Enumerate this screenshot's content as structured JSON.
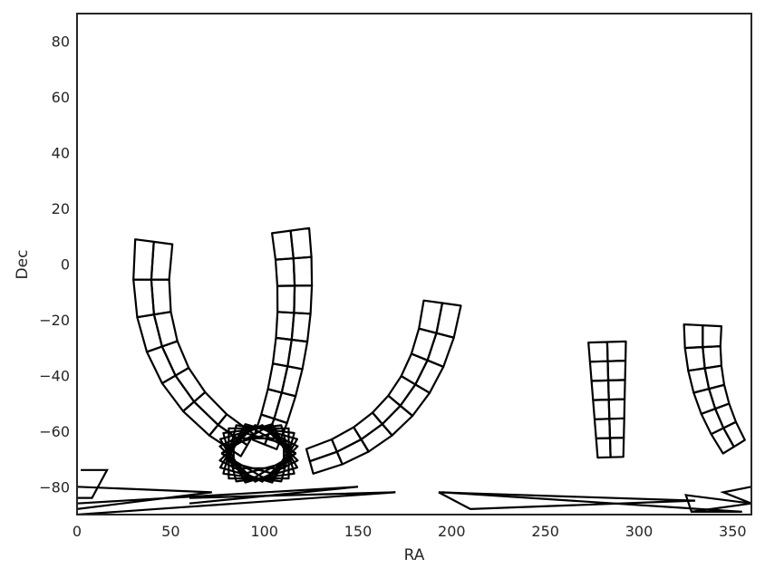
{
  "chart_data": {
    "type": "line",
    "title": "",
    "xlabel": "RA",
    "ylabel": "Dec",
    "xlim": [
      0,
      360
    ],
    "ylim": [
      -90,
      90
    ],
    "xticks": [
      0,
      50,
      100,
      150,
      200,
      250,
      300,
      350
    ],
    "yticks": [
      -80,
      -60,
      -40,
      -20,
      0,
      20,
      40,
      60,
      80
    ],
    "grid": false,
    "legend": false,
    "line_color": "#000000",
    "fans": [
      {
        "name": "fan-a",
        "start": [
          41,
          8
        ],
        "end": [
          105,
          -70
        ],
        "rotate": 96,
        "rings": 7,
        "spread": 10
      },
      {
        "name": "fan-b",
        "start": [
          114,
          12
        ],
        "end": [
          95,
          -73
        ],
        "rotate": -38,
        "rings": 8,
        "spread": 10
      },
      {
        "name": "fan-c",
        "start": [
          195,
          -14
        ],
        "end": [
          110,
          -73
        ],
        "rotate": -95,
        "rings": 8,
        "spread": 10
      },
      {
        "name": "fan-d",
        "start": [
          283,
          -28
        ],
        "end": [
          285,
          -74
        ],
        "rotate": 0,
        "rings": 6,
        "spread": 10
      },
      {
        "name": "fan-e",
        "start": [
          334,
          -22
        ],
        "end": [
          355,
          -70
        ],
        "rotate": 45,
        "rings": 6,
        "spread": 10
      }
    ],
    "cluster": {
      "center": [
        97,
        -68
      ],
      "count": 12,
      "rx": 16,
      "ry": 9
    },
    "streaks": [
      [
        [
          0,
          -80
        ],
        [
          72,
          -82
        ],
        [
          0,
          -88
        ]
      ],
      [
        [
          0,
          -90
        ],
        [
          170,
          -82
        ],
        [
          60,
          -84
        ]
      ],
      [
        [
          0,
          -86
        ],
        [
          150,
          -80
        ],
        [
          60,
          -86
        ]
      ],
      [
        [
          2,
          -74
        ],
        [
          16,
          -74
        ],
        [
          8,
          -84
        ],
        [
          0,
          -84
        ]
      ],
      [
        [
          193,
          -82
        ],
        [
          330,
          -85
        ],
        [
          210,
          -88
        ],
        [
          193,
          -82
        ]
      ],
      [
        [
          195,
          -82
        ],
        [
          355,
          -89
        ],
        [
          328,
          -89
        ],
        [
          325,
          -83
        ],
        [
          360,
          -86
        ]
      ],
      [
        [
          328,
          -89
        ],
        [
          360,
          -86
        ],
        [
          345,
          -82
        ],
        [
          360,
          -80
        ]
      ]
    ]
  }
}
